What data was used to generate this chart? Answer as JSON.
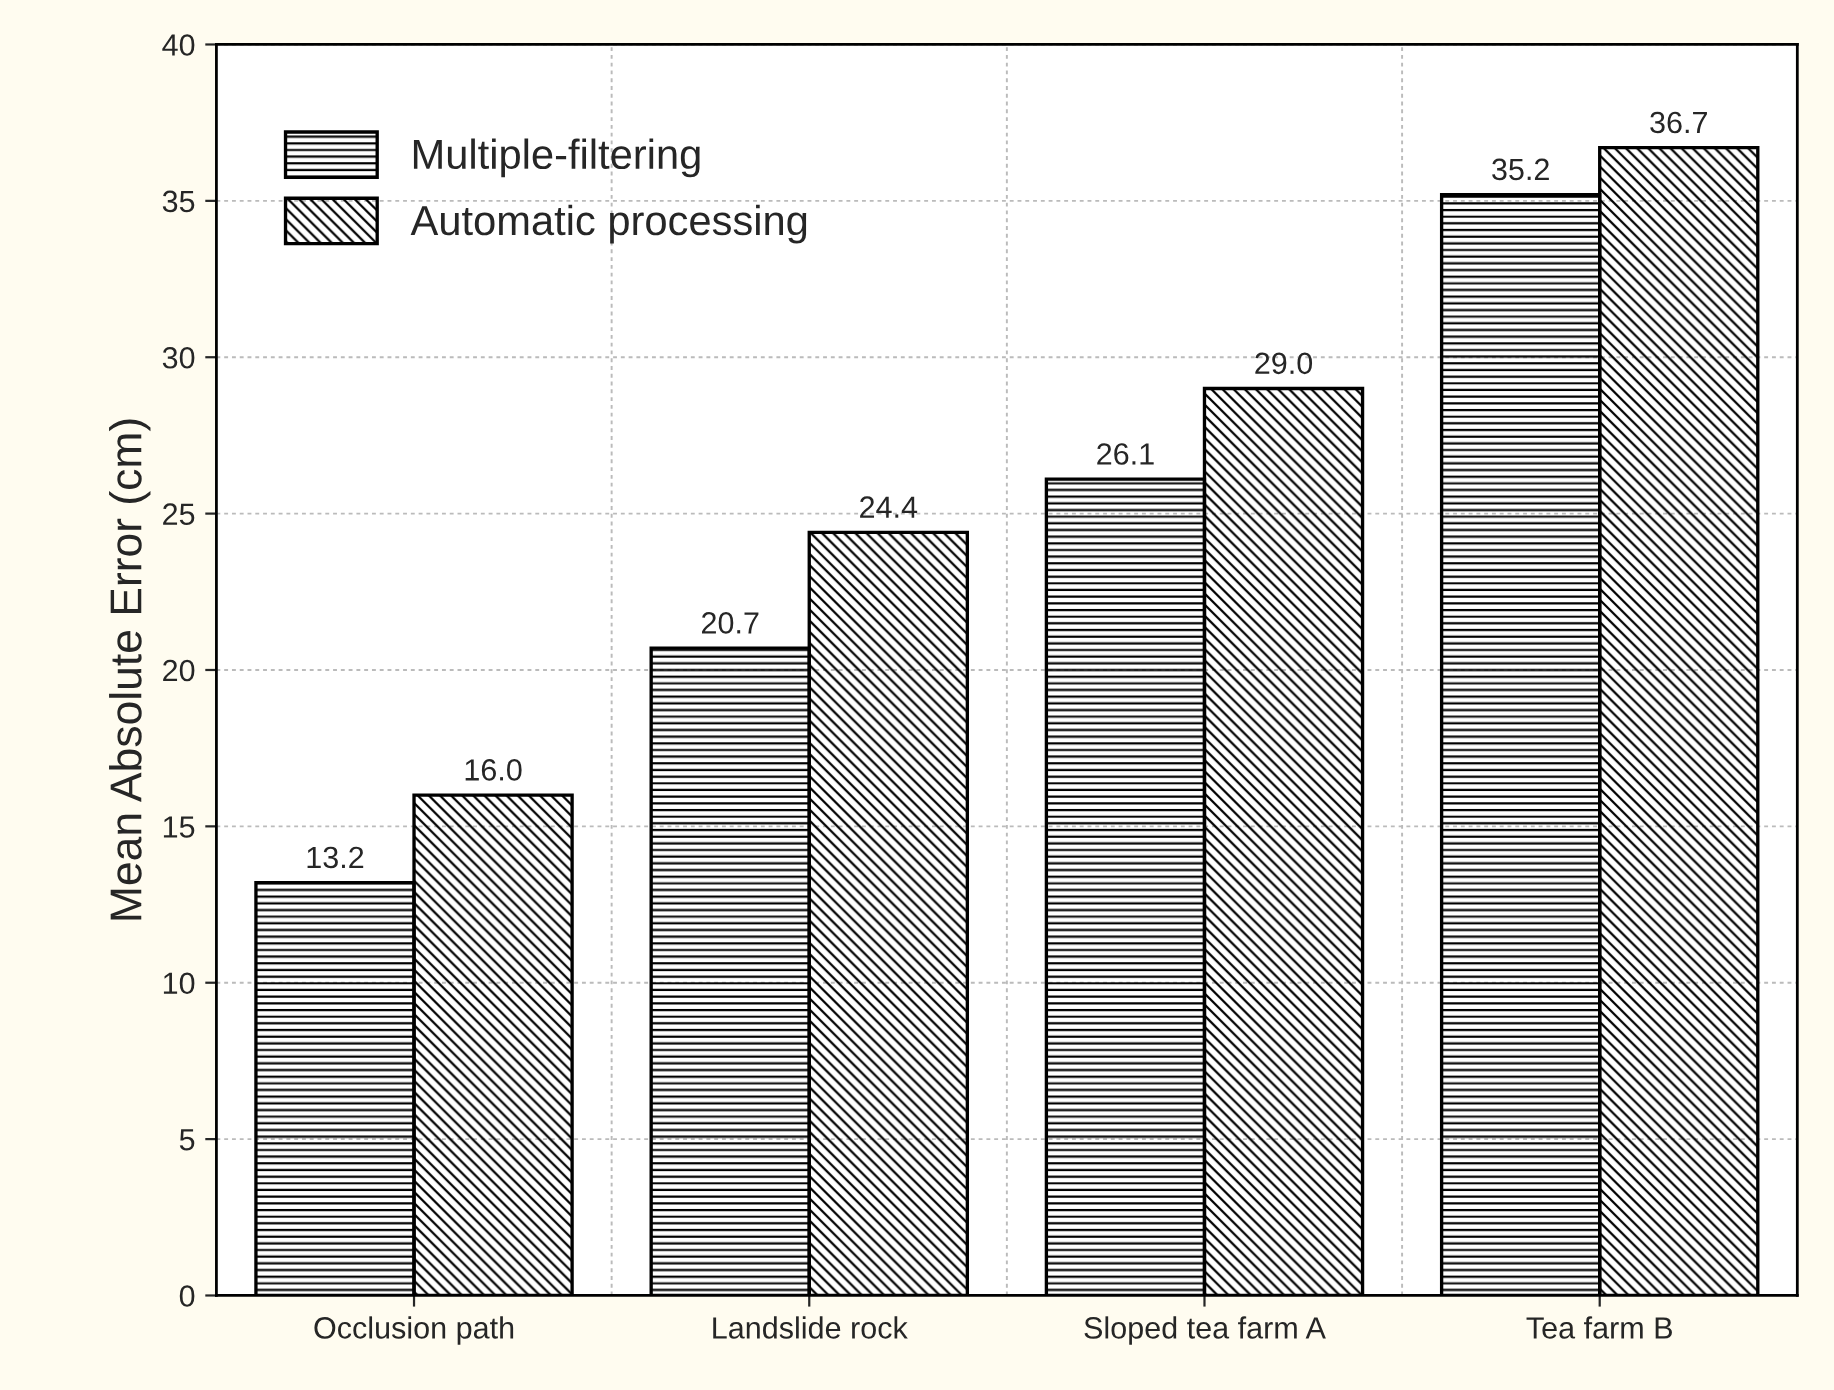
{
  "chart_data": {
    "type": "bar",
    "ylabel": "Mean Absolute Error (cm)",
    "categories": [
      "Occlusion path",
      "Landslide rock",
      "Sloped tea farm A",
      "Tea farm B"
    ],
    "series": [
      {
        "name": "Multiple-filtering",
        "color": "#000000",
        "values": [
          13.2,
          20.7,
          26.1,
          35.2
        ],
        "value_labels": [
          "13.2",
          "20.7",
          "26.1",
          "35.2"
        ]
      },
      {
        "name": "Automatic processing",
        "color": "#000000",
        "values": [
          16.0,
          24.4,
          29.0,
          36.7
        ],
        "value_labels": [
          "16.0",
          "24.4",
          "29.0",
          "36.7"
        ]
      }
    ],
    "ylim": [
      0,
      40
    ],
    "yticks": [
      0,
      5,
      10,
      15,
      20,
      25,
      30,
      35,
      40
    ],
    "grid": true,
    "legend": "top left"
  }
}
